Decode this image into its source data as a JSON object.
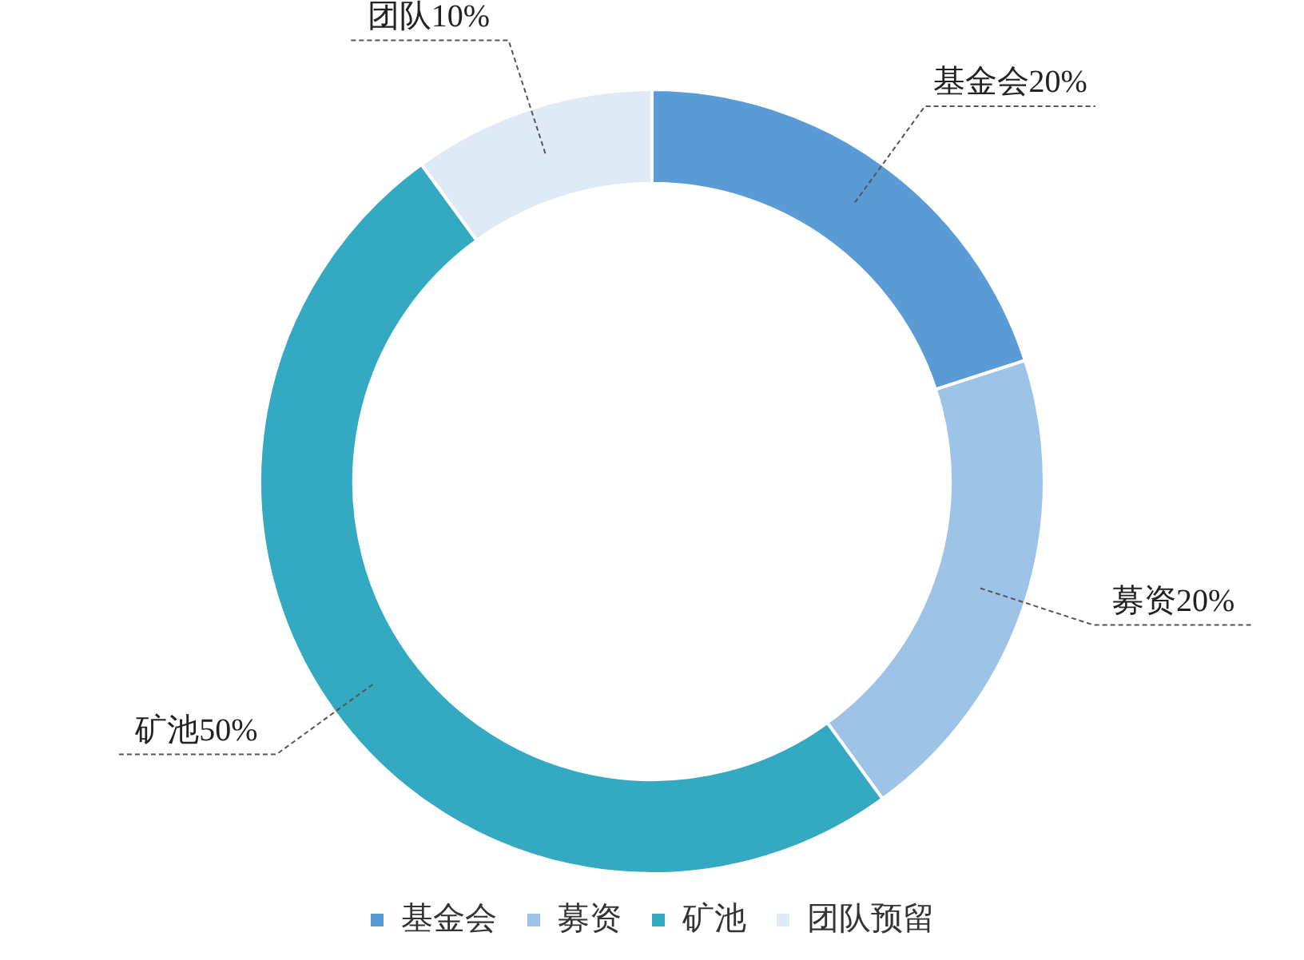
{
  "chart_data": {
    "type": "donut",
    "categories": [
      "基金会",
      "募资",
      "矿池",
      "团队预留"
    ],
    "values": [
      20,
      20,
      50,
      10
    ],
    "value_labels": [
      "基金会20%",
      "募资20%",
      "矿池50%",
      "团队10%"
    ],
    "colors": [
      "#5b9bd5",
      "#9dc3e6",
      "#33a9c2",
      "#deebf7"
    ],
    "legend": "bottom"
  }
}
